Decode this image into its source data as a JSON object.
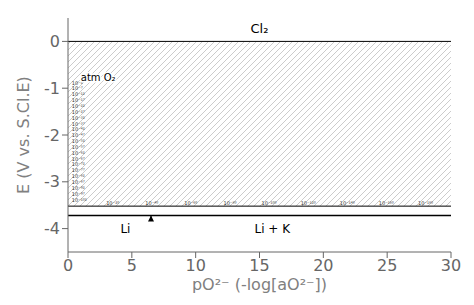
{
  "chart_data": {
    "type": "line",
    "xlabel": "pO²⁻ (-log[aO²⁻])",
    "ylabel": "E (V vs. S.Cl.E)",
    "xlim": [
      0,
      30
    ],
    "ylim": [
      -4.5,
      0.5
    ],
    "xticks": [
      0,
      5,
      10,
      15,
      20,
      25,
      30
    ],
    "yticks": [
      0,
      -1,
      -2,
      -3,
      -4
    ],
    "grid": false,
    "color": "#000000",
    "hlines": [
      0.0,
      -3.52,
      -3.72
    ],
    "hatched_range": [
      -3.52,
      0.0
    ],
    "annotations": [
      {
        "text": "Cl₂",
        "x": 15,
        "y": 0.28
      },
      {
        "text": "Li",
        "x": 4.5,
        "y": -4.0
      },
      {
        "text": "Li + K",
        "x": 16,
        "y": -4.0
      }
    ],
    "window_label": {
      "text": "atm O₂",
      "x": 1.0,
      "y": -0.78
    },
    "left_labels": [
      {
        "text": "10⁻²",
        "x": 0.3,
        "y": -0.88
      },
      {
        "text": "10⁻⁷",
        "x": 0.3,
        "y": -1.005
      },
      {
        "text": "10⁻¹²",
        "x": 0.3,
        "y": -1.13
      },
      {
        "text": "10⁻¹⁷",
        "x": 0.3,
        "y": -1.255
      },
      {
        "text": "10⁻²²",
        "x": 0.3,
        "y": -1.38
      },
      {
        "text": "10⁻²⁷",
        "x": 0.3,
        "y": -1.505
      },
      {
        "text": "10⁻³²",
        "x": 0.3,
        "y": -1.63
      },
      {
        "text": "10⁻³⁷",
        "x": 0.3,
        "y": -1.755
      },
      {
        "text": "10⁻⁴²",
        "x": 0.3,
        "y": -1.88
      },
      {
        "text": "10⁻⁴⁷",
        "x": 0.3,
        "y": -2.005
      },
      {
        "text": "10⁻⁵²",
        "x": 0.3,
        "y": -2.13
      },
      {
        "text": "10⁻⁵⁷",
        "x": 0.3,
        "y": -2.255
      },
      {
        "text": "10⁻⁶²",
        "x": 0.3,
        "y": -2.38
      },
      {
        "text": "10⁻⁶⁷",
        "x": 0.3,
        "y": -2.505
      },
      {
        "text": "10⁻⁷²",
        "x": 0.3,
        "y": -2.63
      },
      {
        "text": "10⁻⁷⁷",
        "x": 0.3,
        "y": -2.755
      },
      {
        "text": "10⁻⁸²",
        "x": 0.3,
        "y": -2.88
      },
      {
        "text": "10⁻⁸⁷",
        "x": 0.3,
        "y": -3.005
      },
      {
        "text": "10⁻⁹²",
        "x": 0.3,
        "y": -3.13
      },
      {
        "text": "10⁻⁹⁷",
        "x": 0.3,
        "y": -3.255
      },
      {
        "text": "10⁻¹⁰²",
        "x": 0.3,
        "y": -3.38
      }
    ],
    "band_labels": [
      {
        "text": "10⁻²⁰",
        "x": 3.5,
        "y": -3.5
      },
      {
        "text": "10⁻⁴⁰",
        "x": 6.5625,
        "y": -3.5
      },
      {
        "text": "10⁻⁶⁰",
        "x": 9.625,
        "y": -3.5
      },
      {
        "text": "10⁻⁸⁰",
        "x": 12.6875,
        "y": -3.5
      },
      {
        "text": "10⁻¹⁰⁰",
        "x": 15.75,
        "y": -3.5
      },
      {
        "text": "10⁻¹²⁰",
        "x": 18.8125,
        "y": -3.5
      },
      {
        "text": "10⁻¹⁴⁰",
        "x": 21.875,
        "y": -3.5
      },
      {
        "text": "10⁻¹⁶⁰",
        "x": 24.9375,
        "y": -3.5
      },
      {
        "text": "10⁻¹⁸⁰",
        "x": 28.0,
        "y": -3.5
      }
    ],
    "arrow": {
      "x": 6.5,
      "tail": -3.83,
      "head": -3.72
    }
  }
}
